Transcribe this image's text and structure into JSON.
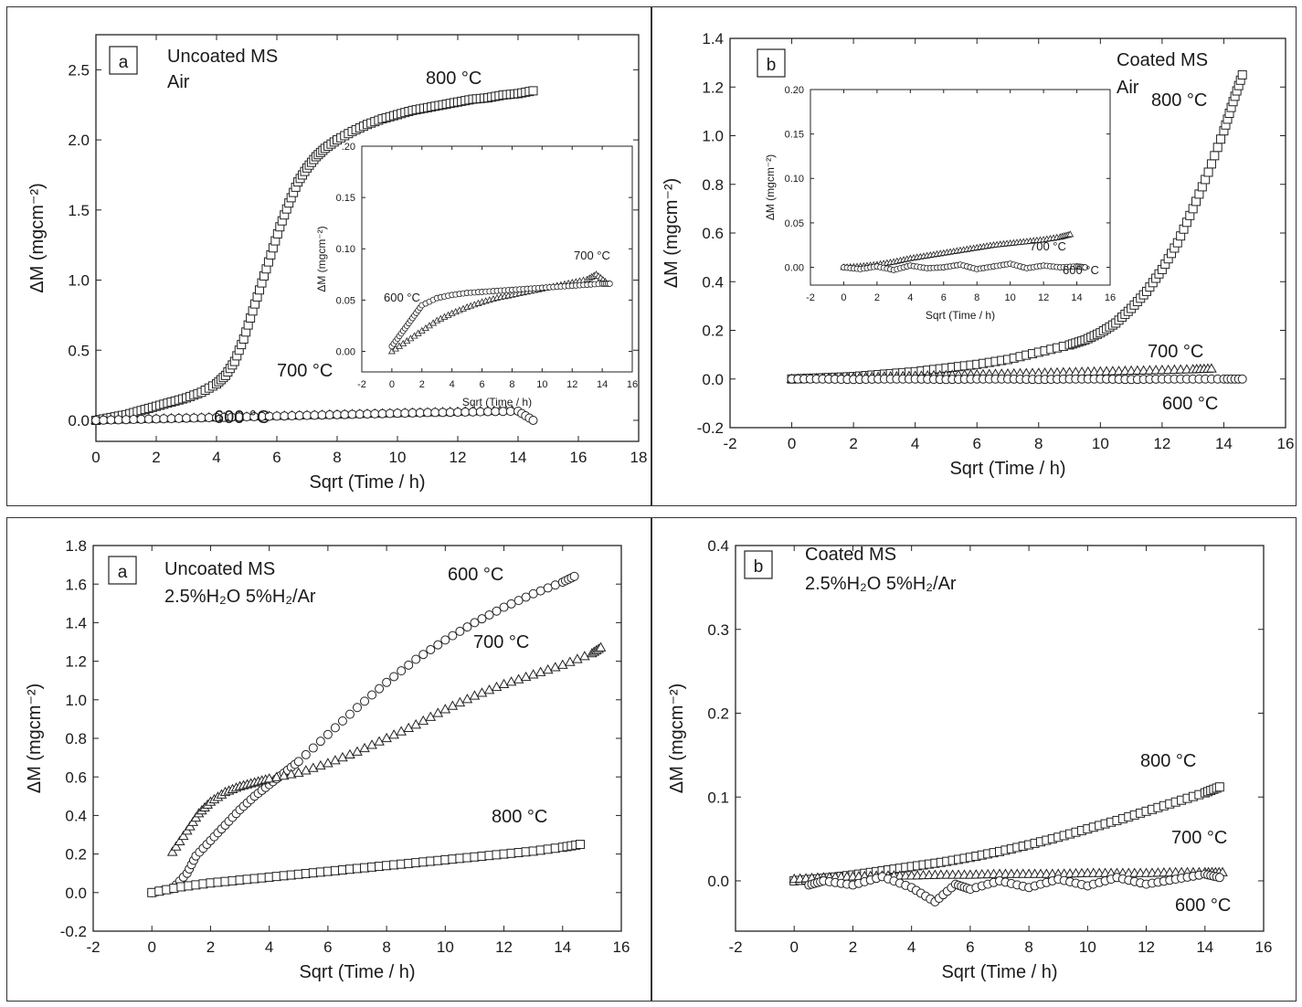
{
  "chart_data": [
    {
      "panel_id": "air-uncoated",
      "type": "scatter",
      "letter": "a",
      "annotation_lines": [
        "Uncoated MS",
        "Air"
      ],
      "xlabel": "Sqrt (Time / h)",
      "ylabel": "ΔM (mgcm⁻²)",
      "xlim": [
        0,
        18
      ],
      "ylim": [
        -0.15,
        2.75
      ],
      "xticks": [
        0,
        2,
        4,
        6,
        8,
        10,
        12,
        14,
        16,
        18
      ],
      "yticks": [
        0.0,
        0.5,
        1.0,
        1.5,
        2.0,
        2.5
      ],
      "xtick_labels": [
        "0",
        "2",
        "4",
        "6",
        "8",
        "10",
        "12",
        "14",
        "16",
        "18"
      ],
      "ytick_labels": [
        "0.0",
        "0.5",
        "1.0",
        "1.5",
        "2.0",
        "2.5"
      ],
      "series": [
        {
          "label": "800 °C",
          "marker": "square",
          "x": [
            0,
            0.5,
            1,
            1.5,
            2,
            2.5,
            3,
            3.5,
            4,
            4.3,
            4.6,
            4.9,
            5.2,
            5.5,
            5.8,
            6.1,
            6.4,
            6.7,
            7.0,
            7.3,
            7.6,
            8.0,
            8.5,
            9.0,
            9.5,
            10,
            10.5,
            11,
            11.5,
            12,
            12.5,
            13,
            13.5,
            14,
            14.5
          ],
          "y": [
            0.0,
            0.02,
            0.04,
            0.07,
            0.1,
            0.13,
            0.16,
            0.2,
            0.26,
            0.32,
            0.42,
            0.58,
            0.78,
            0.98,
            1.18,
            1.38,
            1.55,
            1.7,
            1.8,
            1.88,
            1.94,
            2.0,
            2.06,
            2.11,
            2.15,
            2.18,
            2.21,
            2.23,
            2.25,
            2.27,
            2.29,
            2.3,
            2.32,
            2.33,
            2.35
          ]
        },
        {
          "label": "700 °C",
          "marker": "triangle",
          "x": [
            0,
            1,
            2,
            3,
            4,
            5,
            6,
            7,
            8,
            9,
            10,
            11,
            12,
            13,
            13.8
          ],
          "y": [
            0.0,
            0.005,
            0.01,
            0.015,
            0.02,
            0.025,
            0.03,
            0.035,
            0.04,
            0.045,
            0.05,
            0.055,
            0.06,
            0.065,
            0.07
          ]
        },
        {
          "label": "600 °C",
          "marker": "circle",
          "x": [
            0,
            1,
            2,
            3,
            4,
            5,
            6,
            7,
            8,
            9,
            10,
            11,
            12,
            13,
            14,
            14.5
          ],
          "y": [
            0.0,
            0.005,
            0.01,
            0.015,
            0.02,
            0.025,
            0.03,
            0.035,
            0.04,
            0.045,
            0.05,
            0.055,
            0.058,
            0.062,
            0.065,
            0.0
          ]
        }
      ],
      "inset": {
        "xlabel": "Sqrt (Time / h)",
        "ylabel": "ΔM (mgcm⁻²)",
        "xlim": [
          -2,
          16
        ],
        "ylim": [
          -0.02,
          0.2
        ],
        "xticks": [
          -2,
          0,
          2,
          4,
          6,
          8,
          10,
          12,
          14,
          16
        ],
        "yticks": [
          0.0,
          0.05,
          0.1,
          0.15,
          0.2
        ],
        "xtick_labels": [
          "-2",
          "0",
          "2",
          "4",
          "6",
          "8",
          "10",
          "12",
          "14",
          "16"
        ],
        "ytick_labels": [
          "0.00",
          "0.05",
          "0.10",
          "0.15",
          ".20"
        ],
        "series": [
          {
            "label": "700 °C",
            "marker": "triangle",
            "x": [
              0,
              1,
              2,
              3,
              4,
              5,
              6,
              7,
              8,
              9,
              10,
              11,
              12,
              13,
              13.6,
              14.2
            ],
            "y": [
              0.0,
              0.01,
              0.02,
              0.03,
              0.037,
              0.043,
              0.048,
              0.052,
              0.055,
              0.058,
              0.061,
              0.064,
              0.067,
              0.07,
              0.075,
              0.068
            ]
          },
          {
            "label": "600 °C",
            "marker": "circle",
            "x": [
              0,
              0.5,
              1,
              1.5,
              2,
              3,
              4,
              5,
              6,
              7,
              8,
              9,
              10,
              11,
              12,
              13,
              14,
              14.5
            ],
            "y": [
              0.005,
              0.015,
              0.025,
              0.035,
              0.045,
              0.052,
              0.055,
              0.057,
              0.058,
              0.059,
              0.06,
              0.061,
              0.062,
              0.063,
              0.064,
              0.065,
              0.066,
              0.066
            ]
          }
        ]
      }
    },
    {
      "panel_id": "air-coated",
      "type": "scatter",
      "letter": "b",
      "annotation_lines": [
        "Coated MS",
        "Air"
      ],
      "xlabel": "Sqrt (Time / h)",
      "ylabel": "ΔM (mgcm⁻²)",
      "xlim": [
        -2,
        16
      ],
      "ylim": [
        -0.2,
        1.4
      ],
      "xticks": [
        -2,
        0,
        2,
        4,
        6,
        8,
        10,
        12,
        14,
        16
      ],
      "yticks": [
        -0.2,
        0.0,
        0.2,
        0.4,
        0.6,
        0.8,
        1.0,
        1.2,
        1.4
      ],
      "xtick_labels": [
        "-2",
        "0",
        "2",
        "4",
        "6",
        "8",
        "10",
        "12",
        "14",
        "16"
      ],
      "ytick_labels": [
        "-0.2",
        "0.0",
        "0.2",
        "0.4",
        "0.6",
        "0.8",
        "1.0",
        "1.2",
        "1.4"
      ],
      "series": [
        {
          "label": "800 °C",
          "marker": "square",
          "x": [
            0,
            1,
            2,
            3,
            4,
            5,
            6,
            7,
            8,
            9,
            9.5,
            10,
            10.5,
            11,
            11.5,
            12,
            12.5,
            13,
            13.5,
            14,
            14.3,
            14.6
          ],
          "y": [
            0.0,
            0.005,
            0.01,
            0.02,
            0.03,
            0.045,
            0.06,
            0.08,
            0.11,
            0.14,
            0.16,
            0.19,
            0.23,
            0.29,
            0.36,
            0.45,
            0.56,
            0.7,
            0.85,
            1.02,
            1.14,
            1.25
          ]
        },
        {
          "label": "700 °C",
          "marker": "triangle",
          "x": [
            0,
            1,
            2,
            3,
            4,
            5,
            6,
            7,
            8,
            9,
            10,
            11,
            12,
            13,
            13.6
          ],
          "y": [
            0.0,
            0.003,
            0.006,
            0.009,
            0.012,
            0.015,
            0.018,
            0.021,
            0.024,
            0.027,
            0.03,
            0.033,
            0.036,
            0.039,
            0.042
          ]
        },
        {
          "label": "600 °C",
          "marker": "circle",
          "x": [
            0,
            1,
            2,
            3,
            4,
            5,
            6,
            7,
            8,
            9,
            10,
            11,
            12,
            13,
            14,
            14.6
          ],
          "y": [
            0.0,
            0.0,
            -0.002,
            0.0,
            0.0,
            -0.002,
            0.0,
            0.0,
            -0.002,
            0.0,
            0.0,
            -0.002,
            0.0,
            0.0,
            0.0,
            0.0
          ]
        }
      ],
      "inset": {
        "xlabel": "Sqrt (Time / h)",
        "ylabel": "ΔM (mgcm⁻²)",
        "xlim": [
          -2,
          16
        ],
        "ylim": [
          -0.02,
          0.2
        ],
        "xticks": [
          -2,
          0,
          2,
          4,
          6,
          8,
          10,
          12,
          14,
          16
        ],
        "yticks": [
          0.0,
          0.05,
          0.1,
          0.15,
          0.2
        ],
        "xtick_labels": [
          "-2",
          "0",
          "2",
          "4",
          "6",
          "8",
          "10",
          "12",
          "14",
          "16"
        ],
        "ytick_labels": [
          "0.00",
          "0.05",
          "0.10",
          "0.15",
          "0.20"
        ],
        "series": [
          {
            "label": "700 °C",
            "marker": "triangle",
            "x": [
              0,
              1,
              2,
              3,
              4,
              5,
              6,
              7,
              8,
              9,
              10,
              11,
              12,
              13,
              13.6
            ],
            "y": [
              0.0,
              0.001,
              0.003,
              0.006,
              0.01,
              0.013,
              0.016,
              0.019,
              0.022,
              0.025,
              0.027,
              0.029,
              0.031,
              0.034,
              0.037
            ]
          },
          {
            "label": "600 °C",
            "marker": "circle",
            "x": [
              0,
              1,
              2,
              3,
              4,
              5,
              6,
              7,
              8,
              9,
              10,
              11,
              12,
              13,
              14,
              14.5
            ],
            "y": [
              0.0,
              -0.002,
              0.001,
              -0.003,
              0.002,
              -0.001,
              0.0,
              0.003,
              -0.002,
              0.001,
              0.004,
              -0.001,
              0.002,
              0.0,
              0.001,
              0.0
            ]
          }
        ]
      }
    },
    {
      "panel_id": "h2o-uncoated",
      "type": "scatter",
      "letter": "a",
      "annotation_lines": [
        "Uncoated MS",
        "2.5%H₂O 5%H₂/Ar"
      ],
      "xlabel": "Sqrt (Time / h)",
      "ylabel": "ΔM (mgcm⁻²)",
      "xlim": [
        -2,
        16
      ],
      "ylim": [
        -0.2,
        1.8
      ],
      "xticks": [
        -2,
        0,
        2,
        4,
        6,
        8,
        10,
        12,
        14,
        16
      ],
      "yticks": [
        -0.2,
        0.0,
        0.2,
        0.4,
        0.6,
        0.8,
        1.0,
        1.2,
        1.4,
        1.6,
        1.8
      ],
      "xtick_labels": [
        "-2",
        "0",
        "2",
        "4",
        "6",
        "8",
        "10",
        "12",
        "14",
        "16"
      ],
      "ytick_labels": [
        "-0.2",
        "0.0",
        "0.2",
        "0.4",
        "0.6",
        "0.8",
        "1.0",
        "1.2",
        "1.4",
        "1.6",
        "1.8"
      ],
      "series": [
        {
          "label": "600 °C",
          "marker": "circle",
          "x": [
            0,
            0.7,
            1.2,
            1.5,
            2.0,
            2.5,
            3.0,
            3.5,
            4,
            4.5,
            5,
            6,
            7,
            8,
            9,
            10,
            11,
            12,
            13,
            14,
            14.4
          ],
          "y": [
            0.0,
            0.02,
            0.1,
            0.19,
            0.27,
            0.35,
            0.43,
            0.5,
            0.56,
            0.62,
            0.68,
            0.82,
            0.96,
            1.09,
            1.21,
            1.31,
            1.4,
            1.48,
            1.55,
            1.61,
            1.64
          ]
        },
        {
          "label": "700 °C",
          "marker": "triangle",
          "x": [
            0.7,
            1.2,
            1.6,
            2.0,
            2.5,
            3.0,
            3.5,
            4,
            5,
            6,
            7,
            8,
            9,
            10,
            11,
            12,
            13,
            14,
            15,
            15.3
          ],
          "y": [
            0.21,
            0.32,
            0.41,
            0.47,
            0.52,
            0.55,
            0.57,
            0.59,
            0.62,
            0.67,
            0.73,
            0.8,
            0.87,
            0.95,
            1.02,
            1.08,
            1.13,
            1.18,
            1.24,
            1.27
          ]
        },
        {
          "label": "800 °C",
          "marker": "square",
          "x": [
            0,
            1,
            2,
            3,
            4,
            5,
            6,
            7,
            8,
            9,
            10,
            11,
            12,
            13,
            14,
            14.6
          ],
          "y": [
            0.0,
            0.03,
            0.05,
            0.065,
            0.08,
            0.095,
            0.11,
            0.125,
            0.14,
            0.155,
            0.17,
            0.185,
            0.2,
            0.215,
            0.235,
            0.25
          ]
        }
      ]
    },
    {
      "panel_id": "h2o-coated",
      "type": "scatter",
      "letter": "b",
      "annotation_lines": [
        "Coated MS",
        "2.5%H₂O 5%H₂/Ar"
      ],
      "xlabel": "Sqrt (Time / h)",
      "ylabel": "ΔM (mgcm⁻²)",
      "xlim": [
        -2,
        16
      ],
      "ylim": [
        -0.06,
        0.4
      ],
      "xticks": [
        -2,
        0,
        2,
        4,
        6,
        8,
        10,
        12,
        14,
        16
      ],
      "yticks": [
        0.0,
        0.1,
        0.2,
        0.3,
        0.4
      ],
      "xtick_labels": [
        "-2",
        "0",
        "2",
        "4",
        "6",
        "8",
        "10",
        "12",
        "14",
        "16"
      ],
      "ytick_labels": [
        "0.0",
        "0.1",
        "0.2",
        "0.3",
        "0.4"
      ],
      "series": [
        {
          "label": "800 °C",
          "marker": "square",
          "x": [
            0,
            1,
            2,
            3,
            4,
            5,
            6,
            7,
            8,
            9,
            10,
            11,
            12,
            13,
            14,
            14.5
          ],
          "y": [
            0.0,
            0.003,
            0.007,
            0.012,
            0.017,
            0.022,
            0.028,
            0.035,
            0.043,
            0.052,
            0.062,
            0.072,
            0.083,
            0.094,
            0.105,
            0.112
          ]
        },
        {
          "label": "700 °C",
          "marker": "triangle",
          "x": [
            0,
            1,
            2,
            3,
            4,
            5,
            6,
            7,
            8,
            9,
            10,
            11,
            12,
            13,
            14,
            14.6
          ],
          "y": [
            0.002,
            0.004,
            0.005,
            0.006,
            0.006,
            0.007,
            0.007,
            0.008,
            0.008,
            0.008,
            0.009,
            0.009,
            0.009,
            0.01,
            0.01,
            0.01
          ]
        },
        {
          "label": "600 °C",
          "marker": "circle",
          "x": [
            0.5,
            1,
            2,
            3,
            4,
            4.8,
            5.5,
            6,
            7,
            8,
            9,
            10,
            11,
            12,
            13,
            14,
            14.5
          ],
          "y": [
            -0.005,
            0.0,
            -0.005,
            0.005,
            -0.008,
            -0.025,
            -0.004,
            -0.01,
            0.0,
            -0.008,
            0.002,
            -0.006,
            0.004,
            -0.004,
            0.002,
            0.008,
            0.004
          ]
        }
      ]
    }
  ]
}
